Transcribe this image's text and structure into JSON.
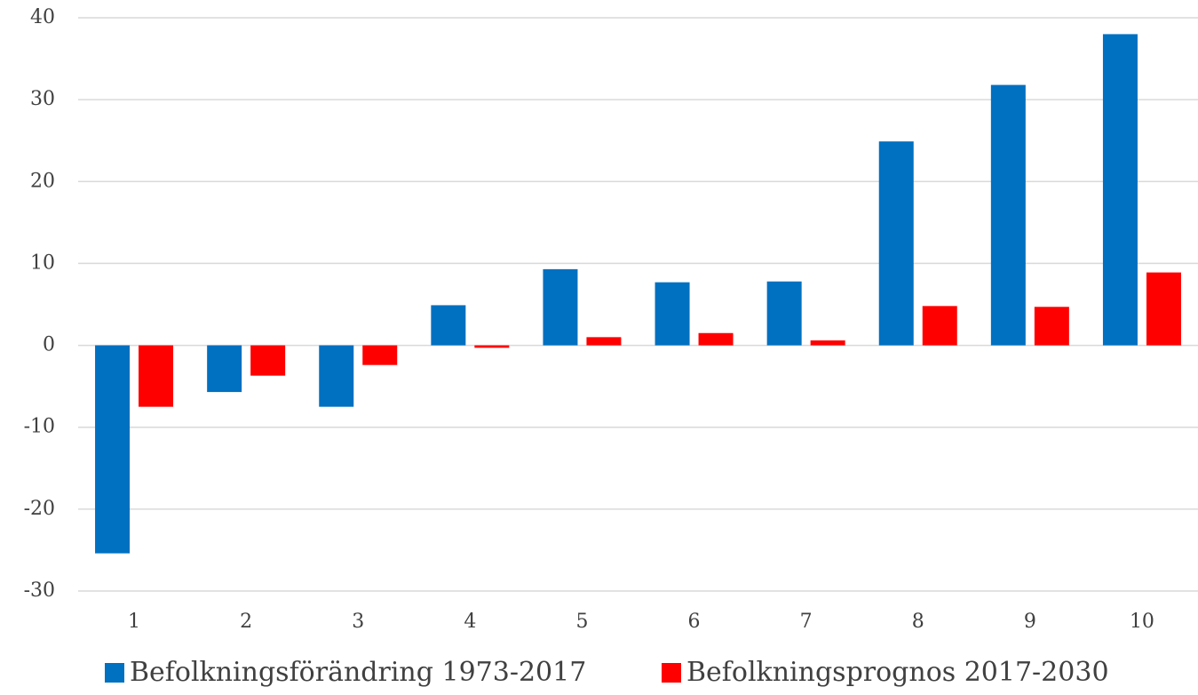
{
  "chart_data": {
    "type": "bar",
    "categories": [
      "1",
      "2",
      "3",
      "4",
      "5",
      "6",
      "7",
      "8",
      "9",
      "10"
    ],
    "series": [
      {
        "name": "Befolkningsförändring 1973-2017",
        "color": "#0070c0",
        "values": [
          -25.4,
          -5.7,
          -7.5,
          4.9,
          9.3,
          7.7,
          7.8,
          24.9,
          31.8,
          38.0
        ]
      },
      {
        "name": "Befolkningsprognos 2017-2030",
        "color": "#ff0000",
        "values": [
          -7.5,
          -3.7,
          -2.4,
          -0.3,
          1.0,
          1.5,
          0.6,
          4.8,
          4.7,
          8.9
        ]
      }
    ],
    "ylim": [
      -30,
      40
    ],
    "yticks": [
      -30,
      -20,
      -10,
      0,
      10,
      20,
      30,
      40
    ],
    "grid": true,
    "legend": "bottom"
  }
}
